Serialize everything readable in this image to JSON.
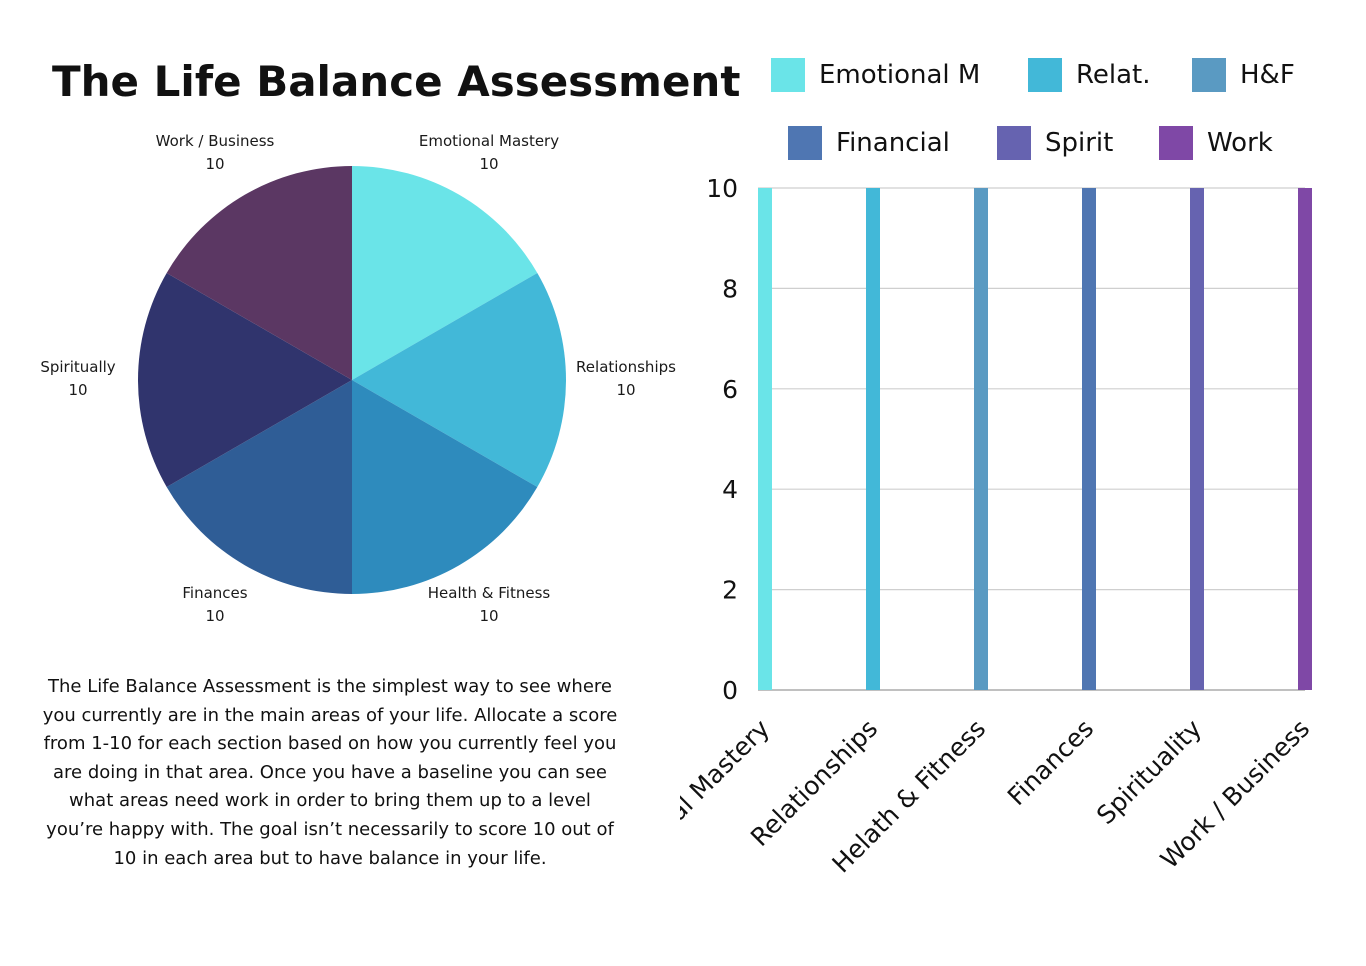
{
  "title": "The Life Balance Assessment",
  "description": "The Life Balance Assessment is the simplest way to see where you currently are in the main areas of your life. Allocate a score from 1-10 for each section based on how you currently feel you are doing in that area. Once you have a baseline you can see what areas need work in order to bring them up to a level you’re happy with. The goal isn’t necessarily to score 10 out of 10 in each area but to have balance in your life.",
  "legend": [
    {
      "label": "Emotional M",
      "color": "#6ae4e8"
    },
    {
      "label": "Relat.",
      "color": "#42b8d8"
    },
    {
      "label": "H&F",
      "color": "#5a9ac2"
    },
    {
      "label": "Financial",
      "color": "#4f76b2"
    },
    {
      "label": "Spirit",
      "color": "#6663b0"
    },
    {
      "label": "Work",
      "color": "#7f48a6"
    }
  ],
  "chart_data": [
    {
      "type": "pie",
      "title": "",
      "slices": [
        {
          "label": "Emotional Mastery",
          "value": 10,
          "color": "#6ae4e8"
        },
        {
          "label": "Relationships",
          "value": 10,
          "color": "#42b8d8"
        },
        {
          "label": "Health & Fitness",
          "value": 10,
          "color": "#2e8bbd"
        },
        {
          "label": "Finances",
          "value": 10,
          "color": "#2f5d96"
        },
        {
          "label": "Spiritually",
          "value": 10,
          "color": "#30346d"
        },
        {
          "label": "Work / Business",
          "value": 10,
          "color": "#5b3763"
        }
      ]
    },
    {
      "type": "bar",
      "title": "",
      "xlabel": "",
      "ylabel": "",
      "categories": [
        "Emotional Mastery",
        "Relationships",
        "Helath & Fitness",
        "Finances",
        "Spirituality",
        "Work / Business"
      ],
      "values": [
        10,
        10,
        10,
        10,
        10,
        10
      ],
      "colors": [
        "#6ae4e8",
        "#42b8d8",
        "#5a9ac2",
        "#4f76b2",
        "#6663b0",
        "#7f48a6"
      ],
      "ylim": [
        0,
        10
      ],
      "yticks": [
        0,
        2,
        4,
        6,
        8,
        10
      ],
      "grid": true,
      "legend_position": "top"
    }
  ]
}
